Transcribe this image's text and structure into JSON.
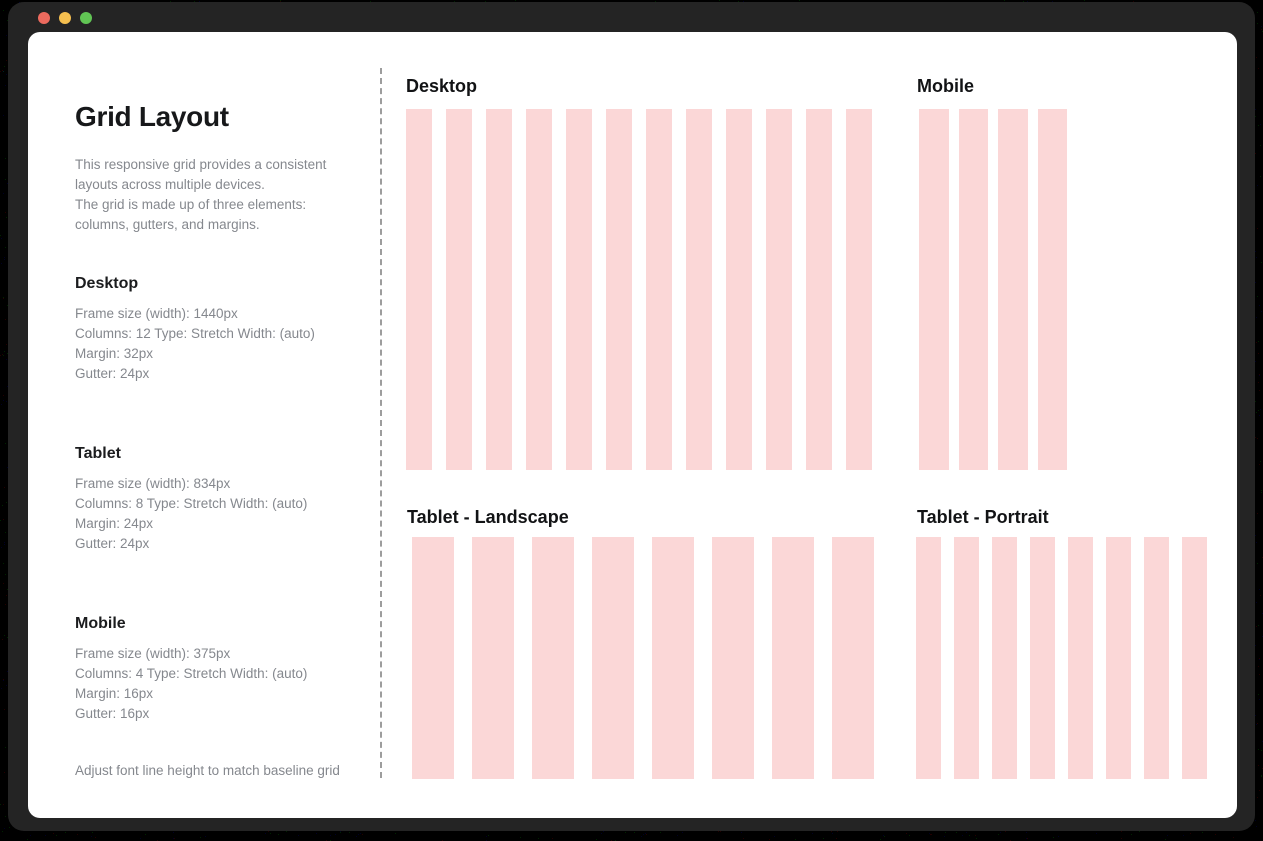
{
  "window": {
    "traffic_lights": [
      {
        "name": "close",
        "color": "#EC6A5E"
      },
      {
        "name": "minimize",
        "color": "#F5BF4F"
      },
      {
        "name": "maximize",
        "color": "#61C554"
      }
    ]
  },
  "sidebar": {
    "title": "Grid Layout",
    "description_lines": [
      "This responsive grid provides a consistent",
      "layouts across multiple devices.",
      "The  grid is made up of three elements:",
      "columns, gutters, and margins."
    ],
    "sections": [
      {
        "heading": "Desktop",
        "lines": [
          "Frame size (width): 1440px",
          "Columns: 12 Type: Stretch Width: (auto)",
          "Margin: 32px",
          "Gutter: 24px"
        ]
      },
      {
        "heading": "Tablet",
        "lines": [
          "Frame size (width): 834px",
          "Columns: 8 Type: Stretch Width: (auto)",
          "Margin: 24px",
          "Gutter: 24px"
        ]
      },
      {
        "heading": "Mobile",
        "lines": [
          "Frame size (width): 375px",
          "Columns: 4 Type: Stretch Width: (auto)",
          "Margin: 16px",
          " Gutter: 16px"
        ]
      }
    ],
    "footnote": "Adjust font line height to match baseline grid"
  },
  "preview": {
    "column_color": "#FBD7D7",
    "panels": [
      {
        "title": "Desktop",
        "columns": 12
      },
      {
        "title": "Mobile",
        "columns": 4
      },
      {
        "title": "Tablet - Landscape",
        "columns": 8
      },
      {
        "title": "Tablet - Portrait",
        "columns": 8
      }
    ]
  }
}
